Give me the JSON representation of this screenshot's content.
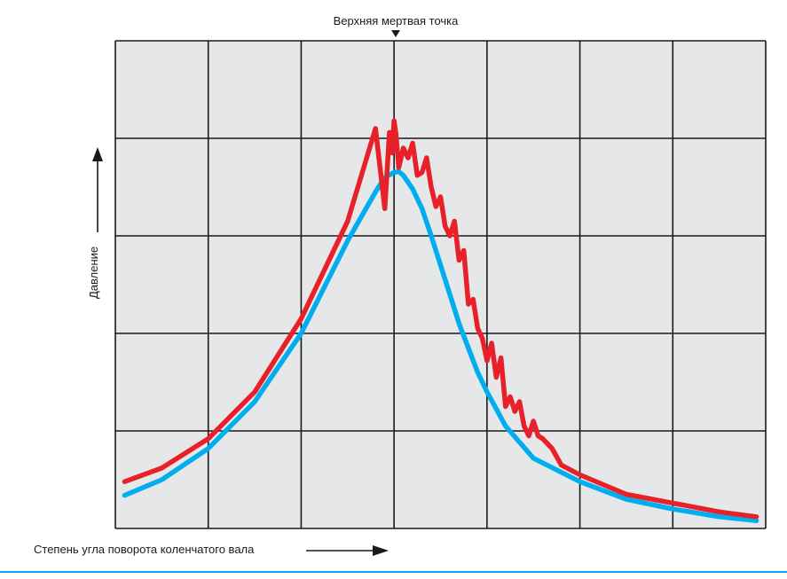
{
  "chart_data": {
    "type": "line",
    "title": "",
    "top_annotation": "Верхняя мертвая точка",
    "xlabel": "Степень угла поворота коленчатого вала",
    "ylabel": "Давление",
    "grid": true,
    "background": "#e6e7e8",
    "xlim": [
      0,
      7
    ],
    "ylim": [
      0,
      5
    ],
    "series": [
      {
        "color": "#e8202a",
        "x": [
          0.1,
          0.5,
          1.0,
          1.5,
          2.0,
          2.5,
          2.8,
          2.9,
          2.95,
          2.98,
          3.0,
          3.02,
          3.05,
          3.1,
          3.15,
          3.2,
          3.25,
          3.3,
          3.35,
          3.4,
          3.45,
          3.5,
          3.55,
          3.6,
          3.65,
          3.7,
          3.75,
          3.8,
          3.85,
          3.9,
          3.95,
          4.0,
          4.05,
          4.1,
          4.15,
          4.2,
          4.25,
          4.3,
          4.35,
          4.4,
          4.45,
          4.5,
          4.55,
          4.6,
          4.7,
          4.8,
          5.0,
          5.5,
          6.0,
          6.5,
          6.9
        ],
        "values": [
          0.48,
          0.62,
          0.92,
          1.4,
          2.15,
          3.15,
          4.1,
          3.28,
          4.06,
          3.85,
          4.18,
          4.05,
          3.7,
          3.9,
          3.8,
          3.95,
          3.62,
          3.65,
          3.8,
          3.5,
          3.3,
          3.4,
          3.1,
          3.0,
          3.15,
          2.75,
          2.85,
          2.3,
          2.35,
          2.05,
          1.95,
          1.72,
          1.9,
          1.55,
          1.75,
          1.25,
          1.35,
          1.2,
          1.3,
          1.05,
          0.95,
          1.1,
          0.95,
          0.92,
          0.82,
          0.65,
          0.55,
          0.35,
          0.26,
          0.17,
          0.12
        ]
      },
      {
        "color": "#00aeef",
        "x": [
          0.1,
          0.5,
          1.0,
          1.5,
          2.0,
          2.5,
          2.8,
          2.9,
          3.0,
          3.05,
          3.1,
          3.2,
          3.3,
          3.4,
          3.5,
          3.6,
          3.7,
          3.8,
          3.9,
          4.0,
          4.2,
          4.5,
          5.0,
          5.5,
          6.0,
          6.5,
          6.9
        ],
        "values": [
          0.34,
          0.5,
          0.82,
          1.3,
          2.0,
          2.95,
          3.45,
          3.6,
          3.65,
          3.66,
          3.62,
          3.48,
          3.28,
          3.0,
          2.7,
          2.4,
          2.1,
          1.85,
          1.6,
          1.4,
          1.05,
          0.72,
          0.48,
          0.3,
          0.2,
          0.12,
          0.08
        ]
      }
    ]
  }
}
